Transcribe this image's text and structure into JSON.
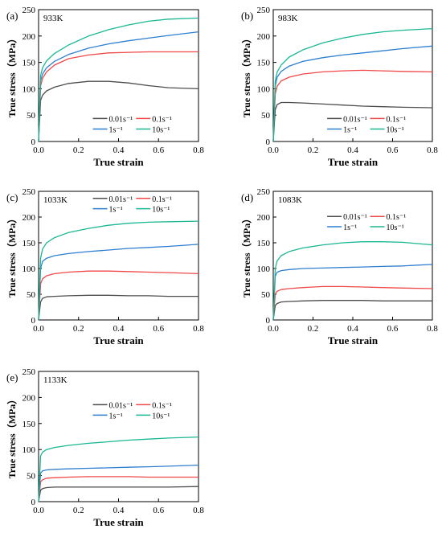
{
  "figure": {
    "legend_labels": [
      "0.01s⁻¹",
      "0.1s⁻¹",
      "1s⁻¹",
      "10s⁻¹"
    ],
    "series_colors": [
      "#4d4d4d",
      "#f04848",
      "#2e7fd0",
      "#1ab892"
    ]
  },
  "chart_data": [
    {
      "type": "line",
      "panel_label": "(a)",
      "annotation": "933K",
      "xlabel": "True strain",
      "ylabel": "True stress（MPa）",
      "xlim": [
        0,
        0.8
      ],
      "ylim": [
        0,
        250
      ],
      "xticks": [
        "0.0",
        "0.2",
        "0.4",
        "0.6",
        "0.8"
      ],
      "yticks": [
        "0",
        "50",
        "100",
        "150",
        "200",
        "250"
      ],
      "x": [
        0,
        0.01,
        0.02,
        0.04,
        0.08,
        0.15,
        0.25,
        0.35,
        0.45,
        0.55,
        0.65,
        0.8
      ],
      "series": [
        {
          "name": "0.01s⁻¹",
          "values": [
            0,
            78,
            88,
            96,
            103,
            110,
            114,
            114,
            111,
            106,
            102,
            100
          ]
        },
        {
          "name": "0.1s⁻¹",
          "values": [
            0,
            105,
            120,
            132,
            145,
            157,
            164,
            168,
            169,
            170,
            170,
            170
          ]
        },
        {
          "name": "1s⁻¹",
          "values": [
            0,
            115,
            128,
            140,
            152,
            165,
            177,
            185,
            191,
            196,
            201,
            208
          ]
        },
        {
          "name": "10s⁻¹",
          "values": [
            0,
            125,
            140,
            153,
            167,
            183,
            200,
            212,
            221,
            228,
            232,
            234
          ]
        }
      ]
    },
    {
      "type": "line",
      "panel_label": "(b)",
      "annotation": "983K",
      "xlabel": "True strain",
      "ylabel": "True stress（MPa）",
      "xlim": [
        0,
        0.8
      ],
      "ylim": [
        0,
        250
      ],
      "xticks": [
        "0.0",
        "0.2",
        "0.4",
        "0.6",
        "0.8"
      ],
      "yticks": [
        "0",
        "50",
        "100",
        "150",
        "200",
        "250"
      ],
      "x": [
        0,
        0.01,
        0.02,
        0.04,
        0.08,
        0.15,
        0.25,
        0.35,
        0.45,
        0.55,
        0.65,
        0.8
      ],
      "series": [
        {
          "name": "0.01s⁻¹",
          "values": [
            0,
            60,
            70,
            74,
            74,
            73,
            71,
            69,
            67,
            66,
            65,
            64
          ]
        },
        {
          "name": "0.1s⁻¹",
          "values": [
            0,
            90,
            105,
            115,
            122,
            128,
            132,
            134,
            135,
            134,
            133,
            132
          ]
        },
        {
          "name": "1s⁻¹",
          "values": [
            0,
            105,
            122,
            133,
            143,
            152,
            159,
            164,
            168,
            172,
            176,
            181
          ]
        },
        {
          "name": "10s⁻¹",
          "values": [
            0,
            115,
            132,
            145,
            160,
            174,
            187,
            196,
            203,
            208,
            211,
            214
          ]
        }
      ]
    },
    {
      "type": "line",
      "panel_label": "(c)",
      "annotation": "1033K",
      "xlabel": "True strain",
      "ylabel": "True stress（MPa）",
      "xlim": [
        0,
        0.8
      ],
      "ylim": [
        0,
        250
      ],
      "xticks": [
        "0.0",
        "0.2",
        "0.4",
        "0.6",
        "0.8"
      ],
      "yticks": [
        "0",
        "50",
        "100",
        "150",
        "200",
        "250"
      ],
      "x": [
        0,
        0.01,
        0.02,
        0.04,
        0.08,
        0.15,
        0.25,
        0.35,
        0.45,
        0.55,
        0.65,
        0.8
      ],
      "series": [
        {
          "name": "0.01s⁻¹",
          "values": [
            0,
            35,
            42,
            45,
            46,
            47,
            48,
            48,
            47,
            47,
            46,
            46
          ]
        },
        {
          "name": "0.1s⁻¹",
          "values": [
            0,
            70,
            80,
            86,
            90,
            93,
            95,
            95,
            94,
            93,
            92,
            90
          ]
        },
        {
          "name": "1s⁻¹",
          "values": [
            0,
            100,
            114,
            120,
            125,
            129,
            133,
            136,
            139,
            141,
            143,
            147
          ]
        },
        {
          "name": "10s⁻¹",
          "values": [
            0,
            120,
            138,
            150,
            160,
            170,
            178,
            184,
            188,
            190,
            191,
            192
          ]
        }
      ]
    },
    {
      "type": "line",
      "panel_label": "(d)",
      "annotation": "1083K",
      "xlabel": "True strain",
      "ylabel": "True stress（MPa）",
      "xlim": [
        0,
        0.8
      ],
      "ylim": [
        0,
        250
      ],
      "xticks": [
        "0.0",
        "0.2",
        "0.4",
        "0.6",
        "0.8"
      ],
      "yticks": [
        "0",
        "50",
        "100",
        "150",
        "200",
        "250"
      ],
      "x": [
        0,
        0.01,
        0.02,
        0.04,
        0.08,
        0.15,
        0.25,
        0.35,
        0.45,
        0.55,
        0.65,
        0.8
      ],
      "series": [
        {
          "name": "0.01s⁻¹",
          "values": [
            0,
            28,
            32,
            35,
            36,
            37,
            38,
            38,
            38,
            37,
            37,
            37
          ]
        },
        {
          "name": "0.1s⁻¹",
          "values": [
            0,
            50,
            56,
            59,
            61,
            63,
            65,
            65,
            64,
            63,
            62,
            61
          ]
        },
        {
          "name": "1s⁻¹",
          "values": [
            0,
            85,
            93,
            96,
            98,
            100,
            101,
            102,
            103,
            104,
            105,
            108
          ]
        },
        {
          "name": "10s⁻¹",
          "values": [
            0,
            100,
            115,
            125,
            133,
            140,
            146,
            150,
            152,
            152,
            151,
            146
          ]
        }
      ]
    },
    {
      "type": "line",
      "panel_label": "(e)",
      "annotation": "1133K",
      "xlabel": "True strain",
      "ylabel": "True stress（MPa）",
      "xlim": [
        0,
        0.8
      ],
      "ylim": [
        0,
        250
      ],
      "xticks": [
        "0.0",
        "0.2",
        "0.4",
        "0.6",
        "0.8"
      ],
      "yticks": [
        "0",
        "50",
        "100",
        "150",
        "200",
        "250"
      ],
      "x": [
        0,
        0.01,
        0.02,
        0.04,
        0.08,
        0.15,
        0.25,
        0.35,
        0.45,
        0.55,
        0.65,
        0.8
      ],
      "series": [
        {
          "name": "0.01s⁻¹",
          "values": [
            0,
            22,
            25,
            27,
            28,
            28,
            28,
            28,
            28,
            28,
            28,
            29
          ]
        },
        {
          "name": "0.1s⁻¹",
          "values": [
            0,
            38,
            42,
            45,
            46,
            47,
            48,
            48,
            48,
            47,
            47,
            47
          ]
        },
        {
          "name": "1s⁻¹",
          "values": [
            0,
            55,
            59,
            61,
            62,
            63,
            64,
            65,
            66,
            67,
            68,
            70
          ]
        },
        {
          "name": "10s⁻¹",
          "values": [
            0,
            88,
            95,
            100,
            104,
            108,
            112,
            115,
            118,
            120,
            122,
            124
          ]
        }
      ]
    }
  ]
}
